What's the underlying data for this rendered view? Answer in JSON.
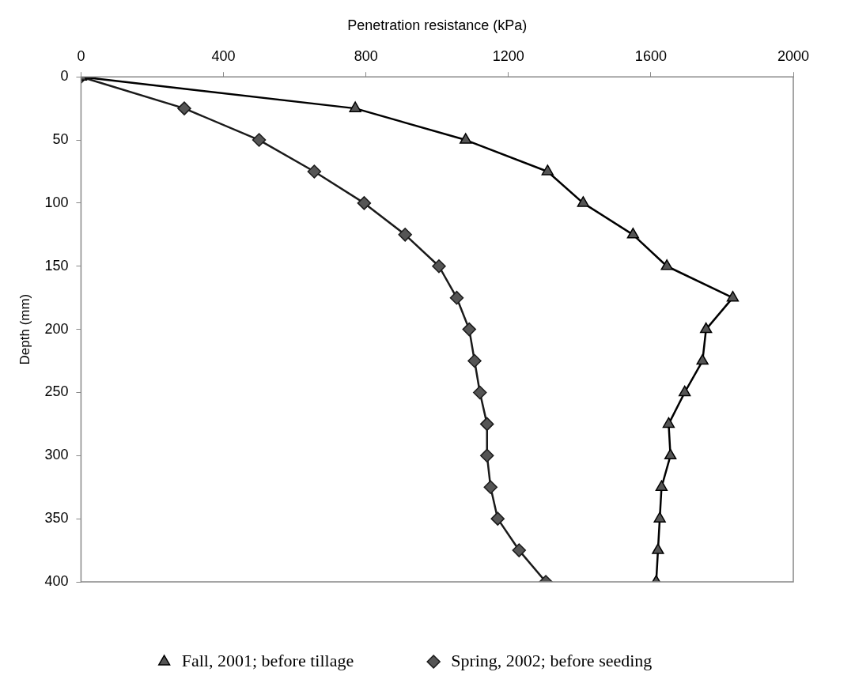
{
  "chart_data": {
    "type": "line",
    "xlabel": "Penetration resistance (kPa)",
    "ylabel": "Depth (mm)",
    "xlim": [
      0,
      2000
    ],
    "xticks": [
      0,
      400,
      800,
      1200,
      1600,
      2000
    ],
    "ylim": [
      400,
      0
    ],
    "yticks": [
      0,
      50,
      100,
      150,
      200,
      250,
      300,
      350,
      400
    ],
    "grid": false,
    "legend": "bottom",
    "line_style": "solid",
    "series": [
      {
        "name": "Fall, 2001; before tillage",
        "color": "#000000",
        "marker": "triangle",
        "x": [
          0,
          770,
          1080,
          1310,
          1410,
          1550,
          1645,
          1830,
          1755,
          1745,
          1695,
          1650,
          1655,
          1630,
          1625,
          1620,
          1615
        ],
        "values": [
          0,
          25,
          50,
          75,
          100,
          125,
          150,
          175,
          200,
          225,
          250,
          275,
          300,
          325,
          350,
          375,
          400
        ]
      },
      {
        "name": "Spring, 2002; before seeding",
        "color": "#1a1a1a",
        "marker": "diamond",
        "x": [
          0,
          290,
          500,
          655,
          795,
          910,
          1005,
          1055,
          1090,
          1105,
          1120,
          1140,
          1140,
          1150,
          1170,
          1230,
          1305
        ],
        "values": [
          0,
          25,
          50,
          75,
          100,
          125,
          150,
          175,
          200,
          225,
          250,
          275,
          300,
          325,
          350,
          375,
          400
        ]
      }
    ]
  }
}
